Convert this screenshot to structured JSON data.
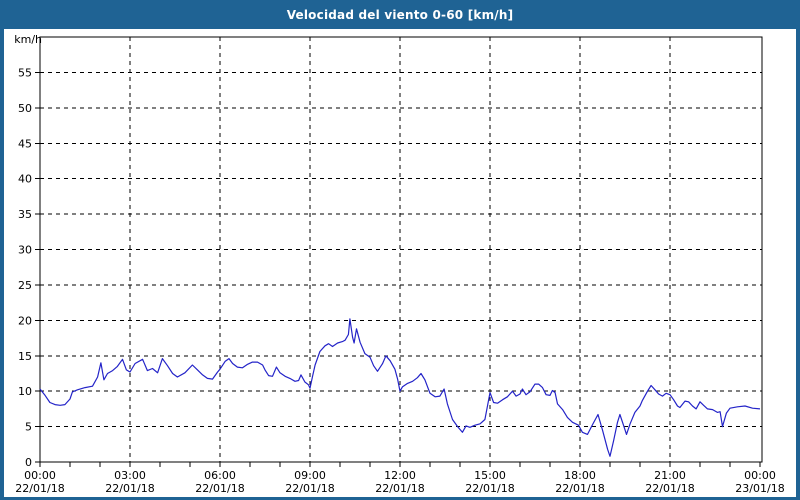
{
  "window": {
    "title": "Velocidad del viento 0-60 [km/h]",
    "title_bar_color": "#1f6394",
    "border_color": "#1f6394",
    "background_color": "#ffffff"
  },
  "chart_data": {
    "type": "line",
    "title": "Velocidad del viento 0-60 [km/h]",
    "ylabel": "km/h",
    "xlabel": "",
    "ylim": [
      0,
      60
    ],
    "ytick_step": 5,
    "ytick_labels": [
      "0",
      "5",
      "10",
      "15",
      "20",
      "25",
      "30",
      "35",
      "40",
      "45",
      "50",
      "55"
    ],
    "xlim_hours": [
      0,
      24
    ],
    "x_minor_tick_every_hours": 1,
    "x_major_ticks": [
      {
        "hour": 0,
        "time": "00:00",
        "date": "22/01/18"
      },
      {
        "hour": 3,
        "time": "03:00",
        "date": "22/01/18"
      },
      {
        "hour": 6,
        "time": "06:00",
        "date": "22/01/18"
      },
      {
        "hour": 9,
        "time": "09:00",
        "date": "22/01/18"
      },
      {
        "hour": 12,
        "time": "12:00",
        "date": "22/01/18"
      },
      {
        "hour": 15,
        "time": "15:00",
        "date": "22/01/18"
      },
      {
        "hour": 18,
        "time": "18:00",
        "date": "22/01/18"
      },
      {
        "hour": 21,
        "time": "21:00",
        "date": "22/01/18"
      },
      {
        "hour": 24,
        "time": "00:00",
        "date": "23/01/18"
      }
    ],
    "grid": "dashed",
    "legend": "none",
    "line_color": "#2424c8",
    "series": [
      {
        "name": "Velocidad del viento",
        "points": [
          [
            0.0,
            10.3
          ],
          [
            0.17,
            9.4
          ],
          [
            0.33,
            8.4
          ],
          [
            0.5,
            8.1
          ],
          [
            0.67,
            8.0
          ],
          [
            0.83,
            8.1
          ],
          [
            1.0,
            8.9
          ],
          [
            1.08,
            9.9
          ],
          [
            1.25,
            10.2
          ],
          [
            1.5,
            10.5
          ],
          [
            1.75,
            10.7
          ],
          [
            1.92,
            12.0
          ],
          [
            2.03,
            14.0
          ],
          [
            2.13,
            11.6
          ],
          [
            2.25,
            12.5
          ],
          [
            2.42,
            12.9
          ],
          [
            2.58,
            13.5
          ],
          [
            2.75,
            14.5
          ],
          [
            2.88,
            13.0
          ],
          [
            3.0,
            12.7
          ],
          [
            3.17,
            13.9
          ],
          [
            3.42,
            14.5
          ],
          [
            3.58,
            12.9
          ],
          [
            3.75,
            13.2
          ],
          [
            3.92,
            12.6
          ],
          [
            4.08,
            14.6
          ],
          [
            4.25,
            13.6
          ],
          [
            4.42,
            12.5
          ],
          [
            4.58,
            12.0
          ],
          [
            4.83,
            12.6
          ],
          [
            5.08,
            13.7
          ],
          [
            5.25,
            13.0
          ],
          [
            5.42,
            12.3
          ],
          [
            5.58,
            11.8
          ],
          [
            5.75,
            11.7
          ],
          [
            5.92,
            12.7
          ],
          [
            6.0,
            13.1
          ],
          [
            6.17,
            14.2
          ],
          [
            6.3,
            14.6
          ],
          [
            6.42,
            13.9
          ],
          [
            6.58,
            13.4
          ],
          [
            6.75,
            13.3
          ],
          [
            6.92,
            13.8
          ],
          [
            7.08,
            14.1
          ],
          [
            7.25,
            14.1
          ],
          [
            7.42,
            13.7
          ],
          [
            7.5,
            13.0
          ],
          [
            7.62,
            12.2
          ],
          [
            7.75,
            12.1
          ],
          [
            7.88,
            13.4
          ],
          [
            8.0,
            12.6
          ],
          [
            8.17,
            12.1
          ],
          [
            8.33,
            11.8
          ],
          [
            8.5,
            11.4
          ],
          [
            8.62,
            11.5
          ],
          [
            8.7,
            12.3
          ],
          [
            8.83,
            11.3
          ],
          [
            8.95,
            10.9
          ],
          [
            9.0,
            10.4
          ],
          [
            9.08,
            12.0
          ],
          [
            9.17,
            13.7
          ],
          [
            9.33,
            15.6
          ],
          [
            9.5,
            16.4
          ],
          [
            9.62,
            16.7
          ],
          [
            9.75,
            16.3
          ],
          [
            9.92,
            16.8
          ],
          [
            10.08,
            17.0
          ],
          [
            10.17,
            17.2
          ],
          [
            10.28,
            18.0
          ],
          [
            10.33,
            20.2
          ],
          [
            10.42,
            17.6
          ],
          [
            10.47,
            16.8
          ],
          [
            10.55,
            18.8
          ],
          [
            10.67,
            16.9
          ],
          [
            10.83,
            15.3
          ],
          [
            11.0,
            14.8
          ],
          [
            11.12,
            13.6
          ],
          [
            11.25,
            12.8
          ],
          [
            11.42,
            13.9
          ],
          [
            11.53,
            15.0
          ],
          [
            11.67,
            14.3
          ],
          [
            11.83,
            13.1
          ],
          [
            11.92,
            11.7
          ],
          [
            12.0,
            10.0
          ],
          [
            12.08,
            10.6
          ],
          [
            12.25,
            11.1
          ],
          [
            12.42,
            11.4
          ],
          [
            12.58,
            11.9
          ],
          [
            12.7,
            12.5
          ],
          [
            12.83,
            11.6
          ],
          [
            13.0,
            9.7
          ],
          [
            13.17,
            9.2
          ],
          [
            13.33,
            9.3
          ],
          [
            13.47,
            10.3
          ],
          [
            13.58,
            8.2
          ],
          [
            13.75,
            6.0
          ],
          [
            13.92,
            5.0
          ],
          [
            14.08,
            4.2
          ],
          [
            14.2,
            5.1
          ],
          [
            14.33,
            4.9
          ],
          [
            14.5,
            5.2
          ],
          [
            14.67,
            5.4
          ],
          [
            14.83,
            6.0
          ],
          [
            14.92,
            8.0
          ],
          [
            15.0,
            9.8
          ],
          [
            15.12,
            8.4
          ],
          [
            15.25,
            8.3
          ],
          [
            15.42,
            8.8
          ],
          [
            15.58,
            9.2
          ],
          [
            15.75,
            10.0
          ],
          [
            15.87,
            9.3
          ],
          [
            16.0,
            9.6
          ],
          [
            16.08,
            10.3
          ],
          [
            16.2,
            9.5
          ],
          [
            16.33,
            9.9
          ],
          [
            16.5,
            11.0
          ],
          [
            16.62,
            11.0
          ],
          [
            16.75,
            10.5
          ],
          [
            16.87,
            9.5
          ],
          [
            17.0,
            9.4
          ],
          [
            17.08,
            10.1
          ],
          [
            17.17,
            9.8
          ],
          [
            17.25,
            8.2
          ],
          [
            17.42,
            7.4
          ],
          [
            17.58,
            6.3
          ],
          [
            17.75,
            5.6
          ],
          [
            17.95,
            5.2
          ],
          [
            18.08,
            4.2
          ],
          [
            18.25,
            3.9
          ],
          [
            18.42,
            5.3
          ],
          [
            18.6,
            6.7
          ],
          [
            18.75,
            4.5
          ],
          [
            18.92,
            1.8
          ],
          [
            19.0,
            0.8
          ],
          [
            19.12,
            3.0
          ],
          [
            19.25,
            5.6
          ],
          [
            19.33,
            6.7
          ],
          [
            19.45,
            5.2
          ],
          [
            19.55,
            3.9
          ],
          [
            19.67,
            5.4
          ],
          [
            19.83,
            7.0
          ],
          [
            20.0,
            7.9
          ],
          [
            20.08,
            8.7
          ],
          [
            20.25,
            10.0
          ],
          [
            20.37,
            10.8
          ],
          [
            20.5,
            10.2
          ],
          [
            20.62,
            9.6
          ],
          [
            20.75,
            9.3
          ],
          [
            20.87,
            9.7
          ],
          [
            21.0,
            9.5
          ],
          [
            21.12,
            8.8
          ],
          [
            21.25,
            7.9
          ],
          [
            21.33,
            7.7
          ],
          [
            21.5,
            8.6
          ],
          [
            21.62,
            8.5
          ],
          [
            21.75,
            7.9
          ],
          [
            21.87,
            7.5
          ],
          [
            22.0,
            8.5
          ],
          [
            22.12,
            8.0
          ],
          [
            22.25,
            7.5
          ],
          [
            22.42,
            7.4
          ],
          [
            22.58,
            7.0
          ],
          [
            22.67,
            7.1
          ],
          [
            22.75,
            5.0
          ],
          [
            22.88,
            6.9
          ],
          [
            23.0,
            7.6
          ],
          [
            23.25,
            7.8
          ],
          [
            23.5,
            7.9
          ],
          [
            23.75,
            7.6
          ],
          [
            24.0,
            7.5
          ]
        ]
      }
    ]
  }
}
